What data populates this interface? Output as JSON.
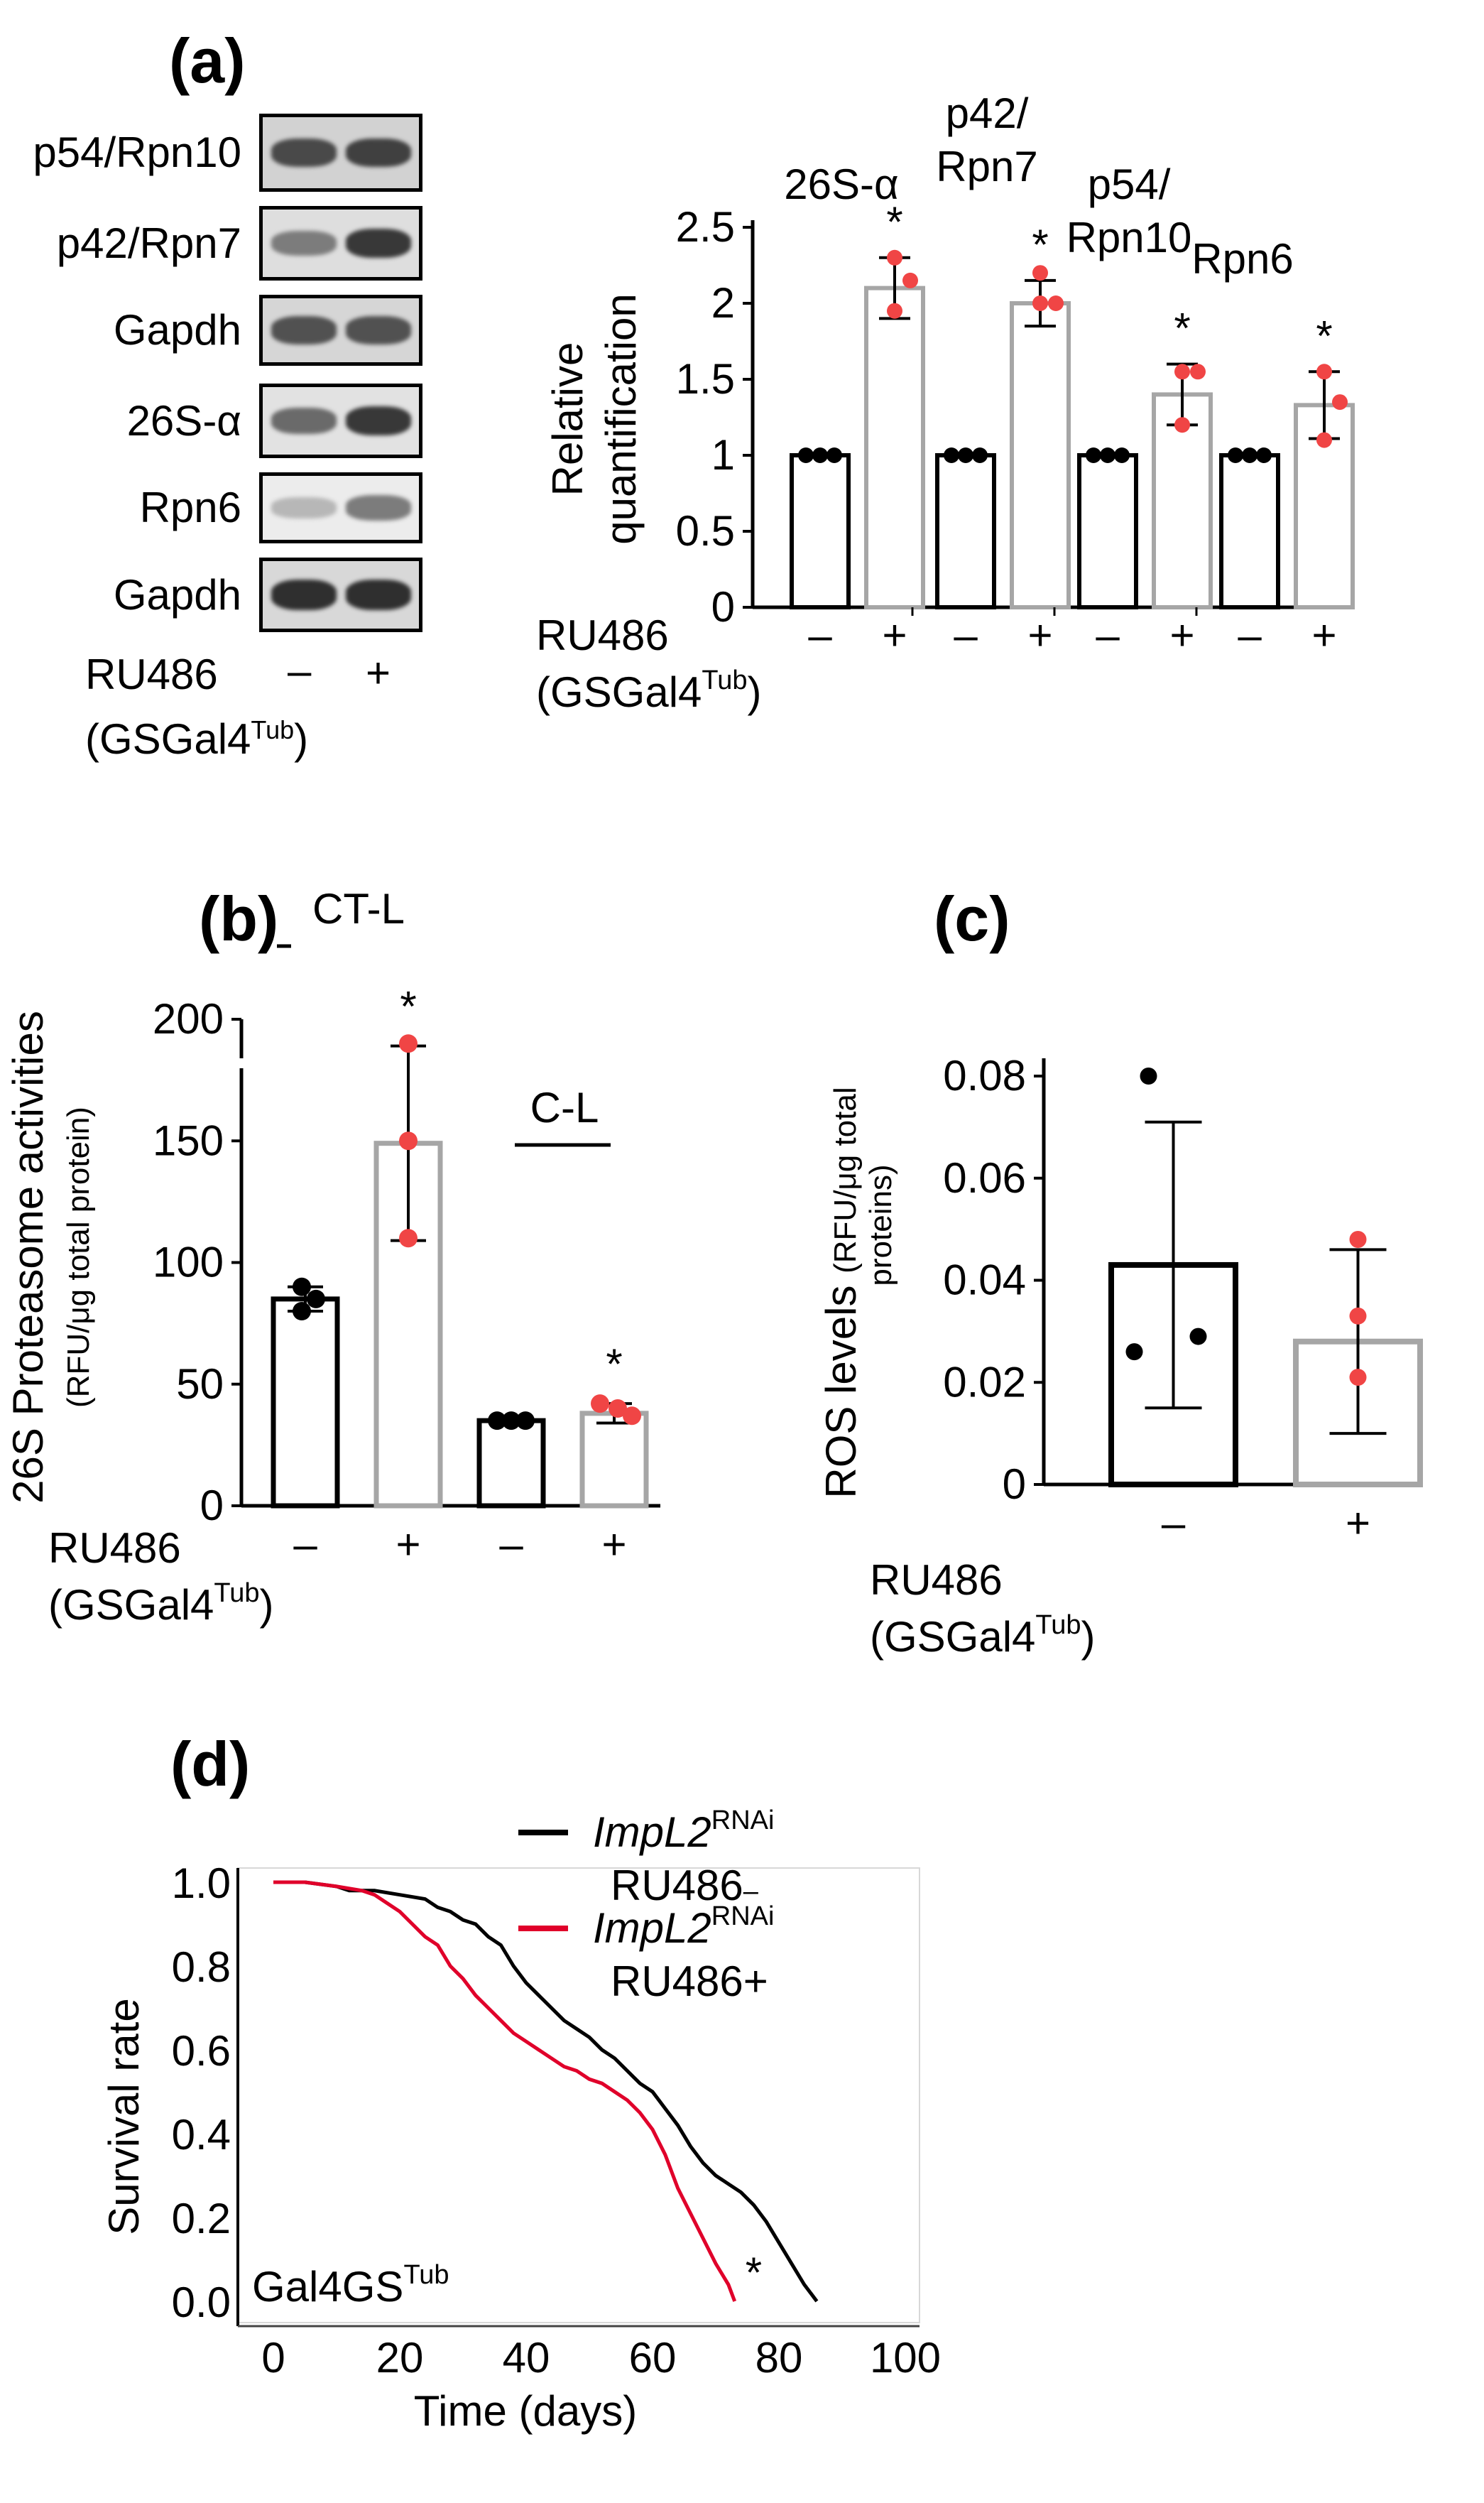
{
  "panel_a": {
    "label": "(a)",
    "blot_rows": [
      {
        "name": "p54/Rpn10",
        "lanes": [
          0.75,
          0.8
        ],
        "bg": "#d2d2d2"
      },
      {
        "name": "p42/Rpn7",
        "lanes": [
          0.45,
          0.85
        ],
        "bg": "#dedede"
      },
      {
        "name": "Gapdh",
        "lanes": [
          0.7,
          0.7
        ],
        "bg": "#d6d6d6"
      },
      {
        "name": "26S-α",
        "lanes": [
          0.55,
          0.85
        ],
        "bg": "#e2e2e2"
      },
      {
        "name": "Rpn6",
        "lanes": [
          0.1,
          0.45
        ],
        "bg": "#ececec"
      },
      {
        "name": "Gapdh",
        "lanes": [
          0.9,
          0.9
        ],
        "bg": "#d8d8d8"
      }
    ],
    "blot_treatment_label": "RU486",
    "blot_treatment_signs": [
      "–",
      "+"
    ],
    "blot_driver": "(GSGal4",
    "blot_driver_sup": "Tub",
    "blot_driver_close": ")"
  },
  "chart_data": [
    {
      "id": "a",
      "type": "bar",
      "ylabel_line1": "Relative",
      "ylabel_line2": "quantification",
      "ylim": [
        0,
        2.5
      ],
      "yticks": [
        "0",
        "0.5",
        "1",
        "1.5",
        "2",
        "2.5"
      ],
      "groups": [
        {
          "name": "26S-α",
          "values": [
            1,
            2.1
          ],
          "errors": [
            0,
            0.2
          ],
          "points": [
            [
              1,
              1,
              1
            ],
            [
              2.3,
              2.15,
              1.95
            ]
          ]
        },
        {
          "name": "p42/\nRpn7",
          "values": [
            1,
            2.0
          ],
          "errors": [
            0,
            0.15
          ],
          "points": [
            [
              1,
              1,
              1
            ],
            [
              2.2,
              2.0,
              2.0
            ]
          ]
        },
        {
          "name": "p54/\nRpn10",
          "values": [
            1,
            1.4
          ],
          "errors": [
            0,
            0.2
          ],
          "points": [
            [
              1,
              1,
              1
            ],
            [
              1.55,
              1.55,
              1.2
            ]
          ]
        },
        {
          "name": "Rpn6",
          "values": [
            1,
            1.33
          ],
          "errors": [
            0,
            0.22
          ],
          "points": [
            [
              1,
              1,
              1
            ],
            [
              1.55,
              1.35,
              1.1
            ]
          ]
        }
      ],
      "significance": [
        "*",
        "*",
        "*",
        "*"
      ],
      "treatment_label": "RU486",
      "treatment_signs": [
        "–",
        "+"
      ],
      "driver": "(GSGal4",
      "driver_sup": "Tub",
      "driver_close": ")",
      "colors": {
        "control": "#000000",
        "treated": "#a6a6a6",
        "control_dot": "#000000",
        "treated_dot": "#f04545"
      }
    },
    {
      "id": "b",
      "type": "bar",
      "label": "(b)",
      "ylabel_line1": "26S Proteasome activities",
      "ylabel_line2": "(RFU/μg total protein)",
      "ylim": [
        0,
        200
      ],
      "yticks": [
        "0",
        "50",
        "100",
        "150",
        "200"
      ],
      "groups": [
        {
          "name": "CT-L",
          "values": [
            85,
            149
          ],
          "errors": [
            5,
            40
          ],
          "points": [
            [
              90,
              85,
              80
            ],
            [
              190,
              150,
              110
            ]
          ]
        },
        {
          "name": "C-L",
          "values": [
            35,
            38
          ],
          "errors": [
            1,
            4
          ],
          "points": [
            [
              35,
              35,
              35
            ],
            [
              42,
              40,
              37
            ]
          ]
        }
      ],
      "significance": [
        "*",
        "*"
      ],
      "treatment_label": "RU486",
      "treatment_signs": [
        "–",
        "+"
      ],
      "driver": "(GSGal4",
      "driver_sup": "Tub",
      "driver_close": ")"
    },
    {
      "id": "c",
      "type": "bar",
      "label": "(c)",
      "ylabel_line1": "ROS levels",
      "ylabel_line2": "(RFU/μg total",
      "ylabel_line3": "proteins)",
      "ylim": [
        0,
        0.08
      ],
      "yticks": [
        "0",
        "0.02",
        "0.04",
        "0.06",
        "0.08"
      ],
      "categories": [
        "–",
        "+"
      ],
      "values": [
        0.043,
        0.028
      ],
      "errors": [
        0.028,
        0.018
      ],
      "points": [
        [
          0.08,
          0.029,
          0.026
        ],
        [
          0.048,
          0.033,
          0.021
        ]
      ],
      "treatment_label": "RU486",
      "driver": "(GSGal4",
      "driver_sup": "Tub",
      "driver_close": ")"
    },
    {
      "id": "d",
      "type": "line",
      "label": "(d)",
      "xlabel": "Time (days)",
      "ylabel": "Survival rate",
      "xlim": [
        0,
        100
      ],
      "ylim": [
        0,
        1.0
      ],
      "xticks": [
        "0",
        "20",
        "40",
        "60",
        "80",
        "100"
      ],
      "yticks": [
        "0.0",
        "0.2",
        "0.4",
        "0.6",
        "0.8",
        "1.0"
      ],
      "annotation": "Gal4GS",
      "annotation_sup": "Tub",
      "significance": "*",
      "series": [
        {
          "name_italic": "ImpL2",
          "name_sup": "RNAi",
          "name_line2": "RU486",
          "name_line2_suffix": "–",
          "color": "#000000",
          "x": [
            0,
            5,
            10,
            12,
            16,
            20,
            24,
            26,
            28,
            30,
            32,
            34,
            36,
            38,
            40,
            42,
            44,
            46,
            48,
            50,
            52,
            54,
            56,
            58,
            60,
            62,
            64,
            66,
            68,
            70,
            72,
            74,
            76,
            78,
            80,
            82,
            84,
            86
          ],
          "y": [
            1.0,
            1.0,
            0.99,
            0.98,
            0.98,
            0.97,
            0.96,
            0.94,
            0.93,
            0.91,
            0.9,
            0.87,
            0.85,
            0.8,
            0.76,
            0.73,
            0.7,
            0.67,
            0.65,
            0.63,
            0.6,
            0.58,
            0.55,
            0.52,
            0.5,
            0.46,
            0.42,
            0.37,
            0.33,
            0.3,
            0.28,
            0.26,
            0.23,
            0.19,
            0.14,
            0.09,
            0.04,
            0.0
          ]
        },
        {
          "name_italic": "ImpL2",
          "name_sup": "RNAi",
          "name_line2": "RU486+",
          "name_line2_suffix": "",
          "color": "#e0002a",
          "x": [
            0,
            5,
            10,
            14,
            16,
            18,
            20,
            22,
            24,
            26,
            28,
            30,
            32,
            34,
            36,
            38,
            40,
            42,
            44,
            46,
            48,
            50,
            52,
            54,
            56,
            58,
            60,
            62,
            64,
            66,
            68,
            70,
            72,
            73
          ],
          "y": [
            1.0,
            1.0,
            0.99,
            0.98,
            0.97,
            0.95,
            0.93,
            0.9,
            0.87,
            0.85,
            0.8,
            0.77,
            0.73,
            0.7,
            0.67,
            0.64,
            0.62,
            0.6,
            0.58,
            0.56,
            0.55,
            0.53,
            0.52,
            0.5,
            0.48,
            0.45,
            0.41,
            0.35,
            0.27,
            0.21,
            0.15,
            0.09,
            0.04,
            0.0
          ]
        }
      ]
    }
  ]
}
